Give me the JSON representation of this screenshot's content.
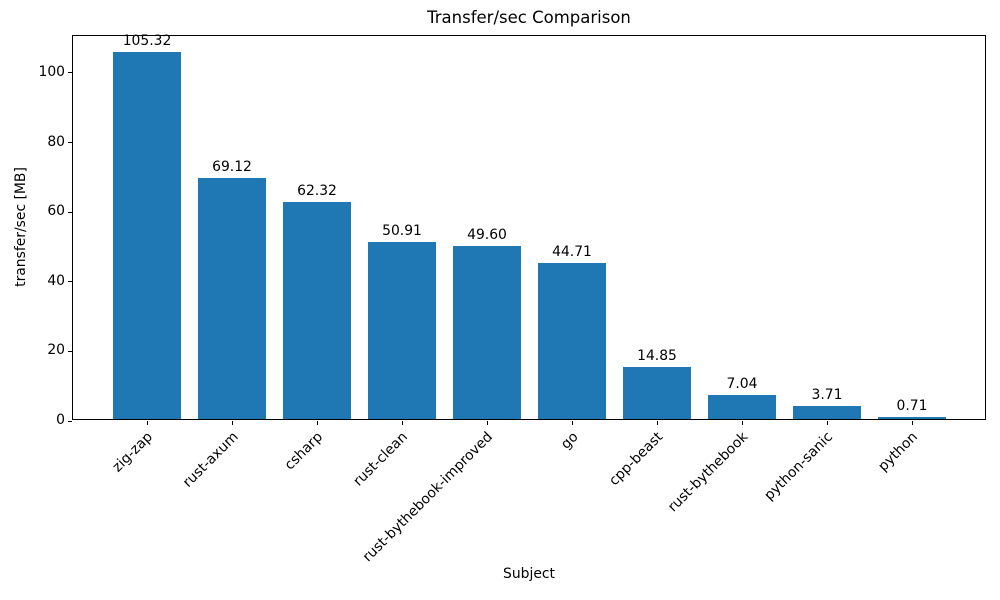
{
  "chart_data": {
    "type": "bar",
    "title": "Transfer/sec Comparison",
    "xlabel": "Subject",
    "ylabel": "transfer/sec [MB]",
    "categories": [
      "zig-zap",
      "rust-axum",
      "csharp",
      "rust-clean",
      "rust-bythebook-improved",
      "go",
      "cpp-beast",
      "rust-bythebook",
      "python-sanic",
      "python"
    ],
    "values": [
      105.32,
      69.12,
      62.32,
      50.91,
      49.6,
      44.71,
      14.85,
      7.04,
      3.71,
      0.71
    ],
    "value_labels": [
      "105.32",
      "69.12",
      "62.32",
      "50.91",
      "49.60",
      "44.71",
      "14.85",
      "7.04",
      "3.71",
      "0.71"
    ],
    "ylim": [
      0,
      110.6
    ],
    "yticks": [
      0,
      20,
      40,
      60,
      80,
      100
    ],
    "ytick_labels": [
      "0",
      "20",
      "40",
      "60",
      "80",
      "100"
    ],
    "bar_color": "#1f77b4",
    "grid": false,
    "legend": null,
    "x_tick_rotation_deg": 45
  }
}
